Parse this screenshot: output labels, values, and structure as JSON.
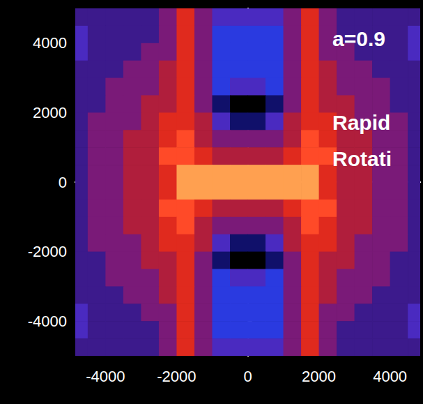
{
  "chart_data": {
    "type": "heatmap",
    "x": [
      -4750,
      -4250,
      -3750,
      -3250,
      -2750,
      -2250,
      -1750,
      -1250,
      -750,
      -250,
      250,
      750,
      1250,
      1750,
      2250,
      2750,
      3250,
      3750,
      4250,
      4750
    ],
    "y": [
      4750,
      4250,
      3750,
      3250,
      2750,
      2250,
      1750,
      1250,
      750,
      250,
      -250,
      -750,
      -1250,
      -1750,
      -2250,
      -2750,
      -3250,
      -3750,
      -4250,
      -4750
    ],
    "cells": [
      [
        4,
        4,
        4,
        4,
        4,
        5,
        7,
        5,
        3,
        3,
        3,
        3,
        5,
        7,
        5,
        4,
        4,
        4,
        4,
        4
      ],
      [
        3,
        4,
        4,
        4,
        4,
        5,
        7,
        5,
        2,
        2,
        2,
        2,
        5,
        7,
        5,
        4,
        4,
        4,
        4,
        3
      ],
      [
        3,
        4,
        4,
        4,
        5,
        5,
        7,
        5,
        2,
        2,
        2,
        2,
        5,
        7,
        5,
        5,
        4,
        4,
        4,
        3
      ],
      [
        4,
        4,
        4,
        5,
        5,
        6,
        7,
        5,
        2,
        2,
        2,
        2,
        5,
        7,
        6,
        5,
        5,
        4,
        4,
        4
      ],
      [
        4,
        4,
        5,
        5,
        5,
        6,
        7,
        5,
        2,
        3,
        3,
        2,
        5,
        7,
        6,
        5,
        5,
        5,
        4,
        4
      ],
      [
        4,
        4,
        5,
        5,
        6,
        6,
        7,
        5,
        1,
        0,
        0,
        1,
        5,
        7,
        6,
        6,
        5,
        5,
        4,
        4
      ],
      [
        4,
        5,
        5,
        5,
        6,
        7,
        7,
        6,
        3,
        1,
        1,
        3,
        6,
        7,
        7,
        6,
        5,
        5,
        5,
        4
      ],
      [
        4,
        5,
        5,
        6,
        6,
        7,
        8,
        6,
        5,
        5,
        5,
        5,
        6,
        8,
        7,
        6,
        6,
        5,
        5,
        4
      ],
      [
        4,
        5,
        5,
        6,
        6,
        8,
        8,
        7,
        6,
        6,
        6,
        6,
        7,
        8,
        8,
        6,
        6,
        5,
        5,
        4
      ],
      [
        4,
        5,
        5,
        6,
        6,
        7,
        9,
        9,
        9,
        9,
        9,
        9,
        9,
        9,
        7,
        6,
        6,
        5,
        5,
        4
      ],
      [
        4,
        5,
        5,
        6,
        6,
        7,
        9,
        9,
        9,
        9,
        9,
        9,
        9,
        9,
        7,
        6,
        6,
        5,
        5,
        4
      ],
      [
        4,
        5,
        5,
        6,
        6,
        8,
        8,
        7,
        6,
        6,
        6,
        6,
        7,
        8,
        8,
        6,
        6,
        5,
        5,
        4
      ],
      [
        4,
        5,
        5,
        6,
        6,
        7,
        8,
        6,
        5,
        5,
        5,
        5,
        6,
        8,
        7,
        6,
        6,
        5,
        5,
        4
      ],
      [
        4,
        5,
        5,
        5,
        6,
        7,
        7,
        6,
        3,
        1,
        1,
        3,
        6,
        7,
        7,
        6,
        5,
        5,
        5,
        4
      ],
      [
        4,
        4,
        5,
        5,
        6,
        6,
        7,
        5,
        1,
        0,
        0,
        1,
        5,
        7,
        6,
        6,
        5,
        5,
        4,
        4
      ],
      [
        4,
        4,
        5,
        5,
        5,
        6,
        7,
        5,
        2,
        3,
        3,
        2,
        5,
        7,
        6,
        5,
        5,
        5,
        4,
        4
      ],
      [
        4,
        4,
        4,
        5,
        5,
        6,
        7,
        5,
        2,
        2,
        2,
        2,
        5,
        7,
        6,
        5,
        5,
        4,
        4,
        4
      ],
      [
        3,
        4,
        4,
        4,
        5,
        5,
        7,
        5,
        2,
        2,
        2,
        2,
        5,
        7,
        5,
        5,
        4,
        4,
        4,
        3
      ],
      [
        3,
        4,
        4,
        4,
        4,
        5,
        7,
        5,
        2,
        2,
        2,
        2,
        5,
        7,
        5,
        4,
        4,
        4,
        4,
        3
      ],
      [
        4,
        4,
        4,
        4,
        4,
        5,
        7,
        5,
        3,
        3,
        3,
        3,
        5,
        7,
        5,
        4,
        4,
        4,
        4,
        4
      ]
    ],
    "zlim": [
      0,
      9
    ],
    "xlim": [
      -4850,
      4850
    ],
    "ylim": [
      -5000,
      5000
    ],
    "xticks": [
      -4000,
      -2000,
      0,
      2000,
      4000
    ],
    "yticks": [
      -4000,
      -2000,
      0,
      2000,
      4000
    ],
    "annotations": [
      "a=0.9",
      "Rapid",
      "Rotati"
    ]
  }
}
